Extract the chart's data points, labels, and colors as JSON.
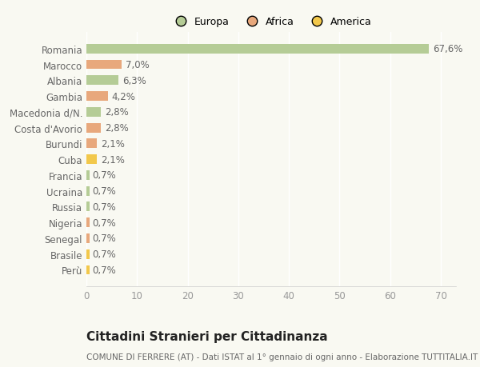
{
  "categories": [
    "Romania",
    "Marocco",
    "Albania",
    "Gambia",
    "Macedonia d/N.",
    "Costa d'Avorio",
    "Burundi",
    "Cuba",
    "Francia",
    "Ucraina",
    "Russia",
    "Nigeria",
    "Senegal",
    "Brasile",
    "Perù"
  ],
  "values": [
    67.6,
    7.0,
    6.3,
    4.2,
    2.8,
    2.8,
    2.1,
    2.1,
    0.7,
    0.7,
    0.7,
    0.7,
    0.7,
    0.7,
    0.7
  ],
  "labels": [
    "67,6%",
    "7,0%",
    "6,3%",
    "4,2%",
    "2,8%",
    "2,8%",
    "2,1%",
    "2,1%",
    "0,7%",
    "0,7%",
    "0,7%",
    "0,7%",
    "0,7%",
    "0,7%",
    "0,7%"
  ],
  "continent": [
    "Europa",
    "Africa",
    "Europa",
    "Africa",
    "Europa",
    "Africa",
    "Africa",
    "America",
    "Europa",
    "Europa",
    "Europa",
    "Africa",
    "Africa",
    "America",
    "America"
  ],
  "colors": {
    "Europa": "#b5cc96",
    "Africa": "#e8a87c",
    "America": "#f2c84b"
  },
  "xlim": [
    0,
    73
  ],
  "xticks": [
    0,
    10,
    20,
    30,
    40,
    50,
    60,
    70
  ],
  "title": "Cittadini Stranieri per Cittadinanza",
  "subtitle": "COMUNE DI FERRERE (AT) - Dati ISTAT al 1° gennaio di ogni anno - Elaborazione TUTTITALIA.IT",
  "bg_color": "#f9f9f2",
  "grid_color": "#ffffff",
  "bar_height": 0.6,
  "label_fontsize": 8.5,
  "tick_fontsize": 8.5,
  "title_fontsize": 11,
  "subtitle_fontsize": 7.5
}
